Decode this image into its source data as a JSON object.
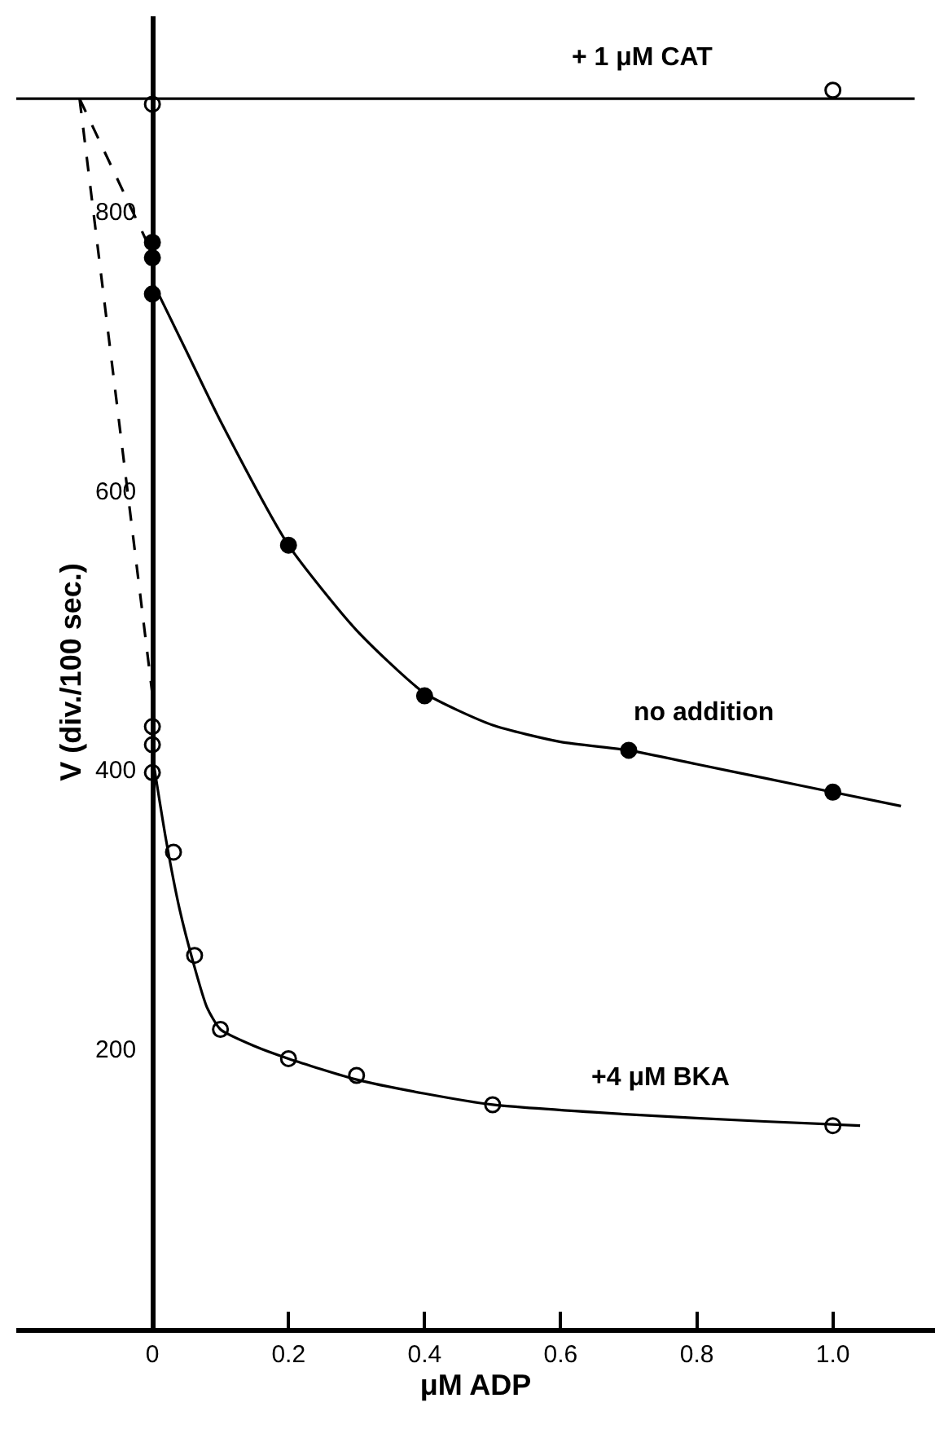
{
  "chart_data": {
    "type": "scatter",
    "xlabel": "μM ADP",
    "ylabel": "V (div./100 sec.)",
    "xlim": [
      -0.2,
      1.15
    ],
    "ylim": [
      0,
      940
    ],
    "xticks": [
      0,
      0.2,
      0.4,
      0.6,
      0.8,
      {
        "value": 1.0,
        "label": "1.0"
      }
    ],
    "yticks": [
      200,
      400,
      600,
      800
    ],
    "series": [
      {
        "marker": "circle",
        "color": "#000000",
        "x": [
          0,
          0,
          0,
          0.2,
          0.4,
          0.7,
          1.0
        ],
        "values": [
          778,
          767,
          741,
          561,
          453,
          414,
          384
        ]
      },
      {
        "marker": "circle-open",
        "color": "#000000",
        "x": [
          0,
          0,
          0,
          0.031,
          0.062,
          0.1,
          0.2,
          0.3,
          0.5,
          1.0
        ],
        "values": [
          431,
          418,
          398,
          341,
          267,
          214,
          193,
          181,
          160,
          145
        ]
      },
      {
        "marker": "circle-open",
        "color": "#000000",
        "x": [
          0,
          1.0
        ],
        "values": [
          877,
          887
        ]
      },
      {
        "type": "line",
        "name": "no addition",
        "line_style": "solid",
        "color": "#000000",
        "x": [
          0,
          0.05,
          0.1,
          0.2,
          0.3,
          0.4,
          0.5,
          0.6,
          0.7,
          0.8,
          0.9,
          1.0,
          1.1
        ],
        "values": [
          750,
          700,
          650,
          561,
          500,
          455,
          432,
          420,
          414,
          404,
          394,
          384,
          374
        ]
      },
      {
        "type": "line",
        "name": "+4 μM BKA",
        "line_style": "solid",
        "color": "#000000",
        "x": [
          0,
          0.02,
          0.04,
          0.06,
          0.08,
          0.1,
          0.15,
          0.2,
          0.3,
          0.4,
          0.5,
          0.7,
          0.9,
          1.04
        ],
        "values": [
          410,
          350,
          300,
          262,
          230,
          214,
          202,
          193,
          178,
          168,
          160,
          153,
          148,
          145
        ]
      },
      {
        "type": "line",
        "name": "+ 1 μM CAT",
        "line_style": "solid",
        "color": "#000000",
        "x": [
          -0.2,
          1.12
        ],
        "values": [
          881,
          881
        ]
      },
      {
        "type": "line",
        "line_style": "dashed",
        "color": "#000000",
        "x": [
          -0.107,
          0
        ],
        "values": [
          881,
          770
        ]
      },
      {
        "type": "line",
        "line_style": "dashed",
        "color": "#000000",
        "x": [
          -0.107,
          0
        ],
        "values": [
          881,
          454
        ]
      }
    ]
  }
}
